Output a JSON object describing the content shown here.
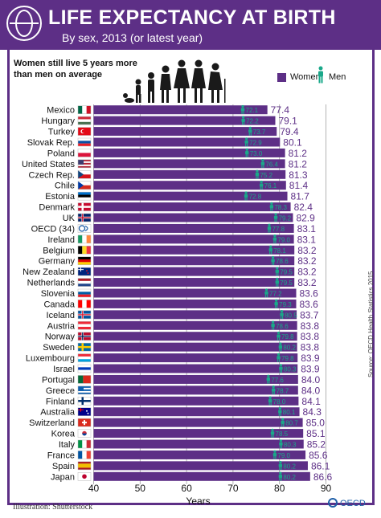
{
  "header": {
    "title": "LIFE EXPECTANCY AT BIRTH",
    "subtitle": "By sex, 2013 (or latest year)"
  },
  "note": "Women still live 5 years more than men on average",
  "legend": {
    "women": "Women",
    "men": "Men"
  },
  "footer": {
    "illustration": "Illustration: Shutterstock",
    "source": "Source: OECD Health Statistics 2015",
    "brand": "OECD"
  },
  "colors": {
    "purple": "#5d2f86",
    "men_green": "#1aa88a",
    "grid": "#a0a0a0"
  },
  "chart_data": {
    "type": "bar",
    "title": "LIFE EXPECTANCY AT BIRTH",
    "subtitle": "By sex, 2013 (or latest year)",
    "xlabel": "Years",
    "xlim": [
      40,
      90
    ],
    "xticks": [
      40,
      50,
      60,
      70,
      80,
      90
    ],
    "grid": true,
    "legend_position": "top-right",
    "categories": [
      "Mexico",
      "Hungary",
      "Turkey",
      "Slovak Rep.",
      "Poland",
      "United States",
      "Czech Rep.",
      "Chile",
      "Estonia",
      "Denmark",
      "UK",
      "OECD (34)",
      "Ireland",
      "Belgium",
      "Germany",
      "New Zealand",
      "Netherlands",
      "Slovenia",
      "Canada",
      "Iceland",
      "Austria",
      "Norway",
      "Sweden",
      "Luxembourg",
      "Israel",
      "Portugal",
      "Greece",
      "Finland",
      "Australia",
      "Switzerland",
      "Korea",
      "Italy",
      "France",
      "Spain",
      "Japan"
    ],
    "series": [
      {
        "name": "Women",
        "values": [
          77.4,
          79.1,
          79.4,
          80.1,
          81.2,
          81.2,
          81.3,
          81.4,
          81.7,
          82.4,
          82.9,
          83.1,
          83.1,
          83.2,
          83.2,
          83.2,
          83.2,
          83.6,
          83.6,
          83.7,
          83.8,
          83.8,
          83.8,
          83.9,
          83.9,
          84.0,
          84.0,
          84.1,
          84.3,
          85.0,
          85.1,
          85.2,
          85.6,
          86.1,
          86.6
        ]
      },
      {
        "name": "Men",
        "values": [
          72.1,
          72.2,
          73.7,
          72.9,
          73.0,
          76.4,
          75.2,
          76.1,
          72.8,
          78.3,
          79.2,
          77.8,
          79.0,
          78.1,
          78.6,
          79.5,
          79.5,
          77.2,
          79.3,
          80.5,
          78.6,
          79.8,
          80.2,
          79.8,
          80.3,
          77.6,
          78.7,
          78.0,
          80.1,
          80.7,
          78.5,
          80.3,
          79.0,
          80.2,
          80.2
        ]
      }
    ],
    "flags": [
      {
        "style": "v3",
        "colors": [
          "#006847",
          "#ffffff",
          "#ce1126"
        ]
      },
      {
        "style": "h3",
        "colors": [
          "#ce2939",
          "#ffffff",
          "#477050"
        ]
      },
      {
        "style": "solid",
        "colors": [
          "#e30a17"
        ]
      },
      {
        "style": "h3",
        "colors": [
          "#ffffff",
          "#0b4ea2",
          "#ee1c25"
        ]
      },
      {
        "style": "h2",
        "colors": [
          "#ffffff",
          "#dc143c"
        ]
      },
      {
        "style": "stripes",
        "colors": [
          "#b22234",
          "#ffffff",
          "#3c3b6e"
        ]
      },
      {
        "style": "h2",
        "colors": [
          "#ffffff",
          "#d7141a",
          "#11457e"
        ]
      },
      {
        "style": "h2",
        "colors": [
          "#ffffff",
          "#d52b1e",
          "#0039a6"
        ]
      },
      {
        "style": "h3",
        "colors": [
          "#0072ce",
          "#000000",
          "#ffffff"
        ]
      },
      {
        "style": "cross",
        "colors": [
          "#c60c30",
          "#ffffff"
        ]
      },
      {
        "style": "cross",
        "colors": [
          "#012169",
          "#ffffff",
          "#c8102e"
        ]
      },
      {
        "style": "oecd",
        "colors": [
          "#ffffff",
          "#1f5fa8"
        ]
      },
      {
        "style": "v3",
        "colors": [
          "#169b62",
          "#ffffff",
          "#ff883e"
        ]
      },
      {
        "style": "v3",
        "colors": [
          "#000000",
          "#fdda24",
          "#ef3340"
        ]
      },
      {
        "style": "h3",
        "colors": [
          "#000000",
          "#dd0000",
          "#ffce00"
        ]
      },
      {
        "style": "canton",
        "colors": [
          "#00247d",
          "#cc142b",
          "#ffffff"
        ]
      },
      {
        "style": "h3",
        "colors": [
          "#ae1c28",
          "#ffffff",
          "#21468b"
        ]
      },
      {
        "style": "h3",
        "colors": [
          "#ffffff",
          "#005da4",
          "#ed1c24"
        ]
      },
      {
        "style": "v3",
        "colors": [
          "#ff0000",
          "#ffffff",
          "#ff0000"
        ]
      },
      {
        "style": "cross",
        "colors": [
          "#02529c",
          "#ffffff",
          "#dc1e35"
        ]
      },
      {
        "style": "h3",
        "colors": [
          "#ed2939",
          "#ffffff",
          "#ed2939"
        ]
      },
      {
        "style": "cross",
        "colors": [
          "#ba0c2f",
          "#ffffff",
          "#00205b"
        ]
      },
      {
        "style": "cross",
        "colors": [
          "#006aa7",
          "#fecc00"
        ]
      },
      {
        "style": "h3",
        "colors": [
          "#ed2939",
          "#ffffff",
          "#00a1de"
        ]
      },
      {
        "style": "h3",
        "colors": [
          "#ffffff",
          "#0038b8",
          "#ffffff"
        ]
      },
      {
        "style": "v2",
        "colors": [
          "#046a38",
          "#da291c"
        ]
      },
      {
        "style": "stripes",
        "colors": [
          "#0d5eaf",
          "#ffffff",
          "#0d5eaf"
        ]
      },
      {
        "style": "cross",
        "colors": [
          "#ffffff",
          "#002f6c"
        ]
      },
      {
        "style": "canton",
        "colors": [
          "#00008b",
          "#ffffff",
          "#ff0000"
        ]
      },
      {
        "style": "swiss",
        "colors": [
          "#da291c",
          "#ffffff"
        ]
      },
      {
        "style": "korea",
        "colors": [
          "#ffffff",
          "#cd2e3a",
          "#0047a0"
        ]
      },
      {
        "style": "v3",
        "colors": [
          "#009246",
          "#ffffff",
          "#ce2b37"
        ]
      },
      {
        "style": "v3",
        "colors": [
          "#0055a4",
          "#ffffff",
          "#ef4135"
        ]
      },
      {
        "style": "h3s",
        "colors": [
          "#aa151b",
          "#f1bf00",
          "#aa151b"
        ]
      },
      {
        "style": "japan",
        "colors": [
          "#ffffff",
          "#bc002d"
        ]
      }
    ]
  }
}
